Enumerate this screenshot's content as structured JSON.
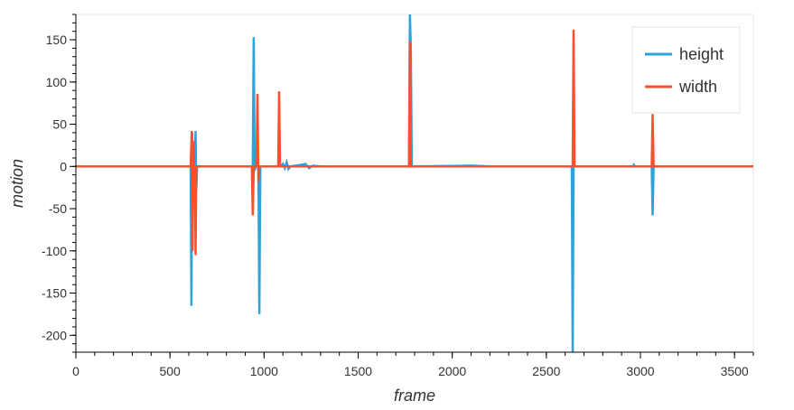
{
  "chart_data": {
    "type": "line",
    "xlabel": "frame",
    "ylabel": "motion",
    "xlim": [
      0,
      3600
    ],
    "ylim": [
      -220,
      180
    ],
    "x_ticks": [
      0,
      500,
      1000,
      1500,
      2000,
      2500,
      3000,
      3500
    ],
    "y_ticks": [
      150,
      100,
      50,
      0,
      -50,
      -100,
      -150,
      -200
    ],
    "x_tick_labels": [
      "0",
      "500",
      "1000",
      "1500",
      "2000",
      "2500",
      "3000",
      "3500"
    ],
    "y_tick_labels": [
      "150",
      "100",
      "50",
      "0",
      "-50",
      "-100",
      "-150",
      "-200"
    ],
    "grid": false,
    "legend_position": "top-right",
    "series": [
      {
        "name": "height",
        "color": "#30a2da",
        "points": [
          [
            0,
            0
          ],
          [
            300,
            0
          ],
          [
            610,
            0
          ],
          [
            614,
            -165
          ],
          [
            618,
            40
          ],
          [
            622,
            -20
          ],
          [
            626,
            0
          ],
          [
            632,
            0
          ],
          [
            636,
            42
          ],
          [
            640,
            -28
          ],
          [
            644,
            0
          ],
          [
            940,
            0
          ],
          [
            945,
            153
          ],
          [
            950,
            -5
          ],
          [
            955,
            0
          ],
          [
            970,
            0
          ],
          [
            975,
            -175
          ],
          [
            980,
            0
          ],
          [
            1090,
            0
          ],
          [
            1100,
            3
          ],
          [
            1110,
            -2
          ],
          [
            1120,
            5
          ],
          [
            1130,
            -3
          ],
          [
            1140,
            0
          ],
          [
            1200,
            2
          ],
          [
            1220,
            3
          ],
          [
            1240,
            -2
          ],
          [
            1260,
            1
          ],
          [
            1300,
            0
          ],
          [
            1770,
            0
          ],
          [
            1775,
            180
          ],
          [
            1780,
            140
          ],
          [
            1785,
            0
          ],
          [
            2100,
            1
          ],
          [
            2200,
            0
          ],
          [
            2635,
            0
          ],
          [
            2640,
            -220
          ],
          [
            2645,
            0
          ],
          [
            2960,
            0
          ],
          [
            2965,
            2
          ],
          [
            2970,
            0
          ],
          [
            3060,
            0
          ],
          [
            3065,
            -58
          ],
          [
            3070,
            0
          ],
          [
            3600,
            0
          ]
        ]
      },
      {
        "name": "width",
        "color": "#fc4f30",
        "points": [
          [
            0,
            0
          ],
          [
            300,
            0
          ],
          [
            610,
            0
          ],
          [
            616,
            42
          ],
          [
            620,
            -100
          ],
          [
            624,
            30
          ],
          [
            628,
            0
          ],
          [
            632,
            0
          ],
          [
            636,
            -105
          ],
          [
            640,
            0
          ],
          [
            935,
            0
          ],
          [
            940,
            -58
          ],
          [
            945,
            0
          ],
          [
            960,
            0
          ],
          [
            965,
            86
          ],
          [
            970,
            -18
          ],
          [
            975,
            0
          ],
          [
            1075,
            0
          ],
          [
            1080,
            89
          ],
          [
            1085,
            0
          ],
          [
            1770,
            0
          ],
          [
            1775,
            148
          ],
          [
            1780,
            0
          ],
          [
            2640,
            0
          ],
          [
            2645,
            162
          ],
          [
            2650,
            0
          ],
          [
            3060,
            0
          ],
          [
            3065,
            62
          ],
          [
            3070,
            0
          ],
          [
            3600,
            0
          ]
        ]
      }
    ]
  }
}
